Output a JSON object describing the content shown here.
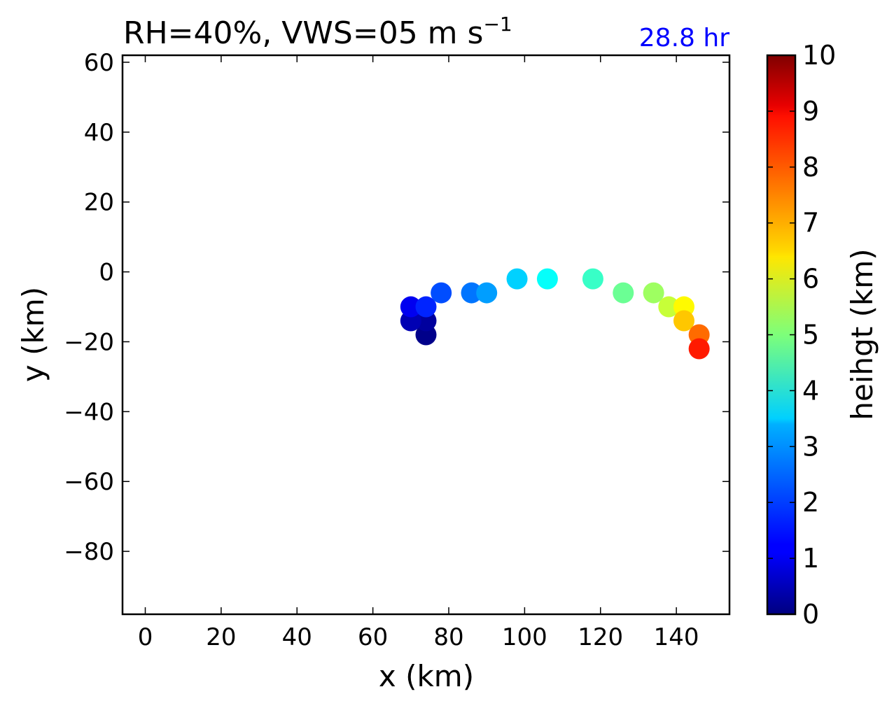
{
  "chart_data": {
    "type": "scatter",
    "title": {
      "main": "RH=40%, VWS=05 m s",
      "superscript": "−1"
    },
    "annotation": {
      "text": "28.8 hr",
      "color": "#0000ff"
    },
    "xlabel": "x (km)",
    "ylabel": "y (km)",
    "xlim": [
      -6,
      154
    ],
    "ylim": [
      -98,
      62
    ],
    "xticks": [
      0,
      20,
      40,
      60,
      80,
      100,
      120,
      140
    ],
    "yticks": [
      60,
      40,
      20,
      0,
      -20,
      -40,
      -60,
      -80
    ],
    "xtick_labels": [
      "0",
      "20",
      "40",
      "60",
      "80",
      "100",
      "120",
      "140"
    ],
    "ytick_labels": [
      "60",
      "40",
      "20",
      "0",
      "−20",
      "−40",
      "−60",
      "−80"
    ],
    "grid": false,
    "colorbar": {
      "label": "heihgt (km)",
      "range": [
        0,
        10
      ],
      "colormap": "jet",
      "ticks": [
        0,
        1,
        2,
        3,
        4,
        5,
        6,
        7,
        8,
        9,
        10
      ],
      "tick_labels": [
        "0",
        "1",
        "2",
        "3",
        "4",
        "5",
        "6",
        "7",
        "8",
        "9",
        "10"
      ]
    },
    "points": [
      {
        "x": 74,
        "y": -18,
        "z": 0.1
      },
      {
        "x": 74,
        "y": -14,
        "z": 0.3
      },
      {
        "x": 70,
        "y": -14,
        "z": 0.5
      },
      {
        "x": 70,
        "y": -10,
        "z": 1.1
      },
      {
        "x": 74,
        "y": -10,
        "z": 1.6
      },
      {
        "x": 78,
        "y": -6,
        "z": 2.0
      },
      {
        "x": 86,
        "y": -6,
        "z": 2.4
      },
      {
        "x": 90,
        "y": -6,
        "z": 2.8
      },
      {
        "x": 98,
        "y": -2,
        "z": 3.3
      },
      {
        "x": 106,
        "y": -2,
        "z": 3.8
      },
      {
        "x": 118,
        "y": -2,
        "z": 4.3
      },
      {
        "x": 126,
        "y": -6,
        "z": 4.8
      },
      {
        "x": 134,
        "y": -6,
        "z": 5.3
      },
      {
        "x": 138,
        "y": -10,
        "z": 5.7
      },
      {
        "x": 142,
        "y": -10,
        "z": 6.3
      },
      {
        "x": 142,
        "y": -14,
        "z": 6.8
      },
      {
        "x": 146,
        "y": -18,
        "z": 7.7
      },
      {
        "x": 146,
        "y": -22,
        "z": 8.5
      }
    ]
  }
}
